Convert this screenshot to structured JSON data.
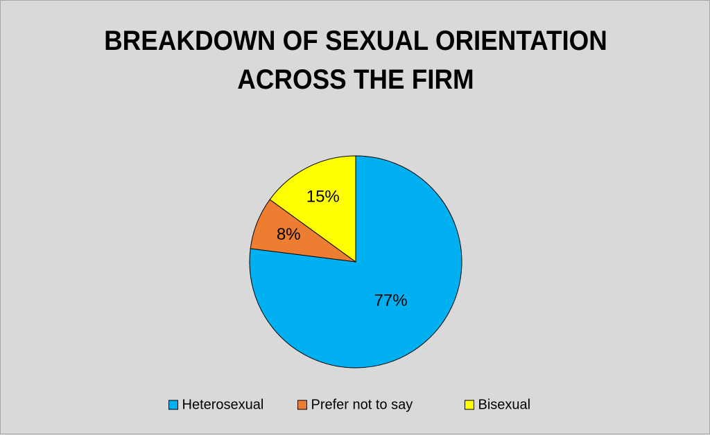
{
  "chart_data": {
    "type": "pie",
    "title": "BREAKDOWN OF SEXUAL ORIENTATION ACROSS THE FIRM",
    "categories": [
      "Heterosexual",
      "Prefer not to say",
      "Bisexual"
    ],
    "values": [
      77,
      8,
      15
    ],
    "value_labels": [
      "77%",
      "8%",
      "15%"
    ],
    "colors": [
      "#00b0f0",
      "#ed7d31",
      "#ffff00"
    ],
    "legend": "bottom"
  }
}
